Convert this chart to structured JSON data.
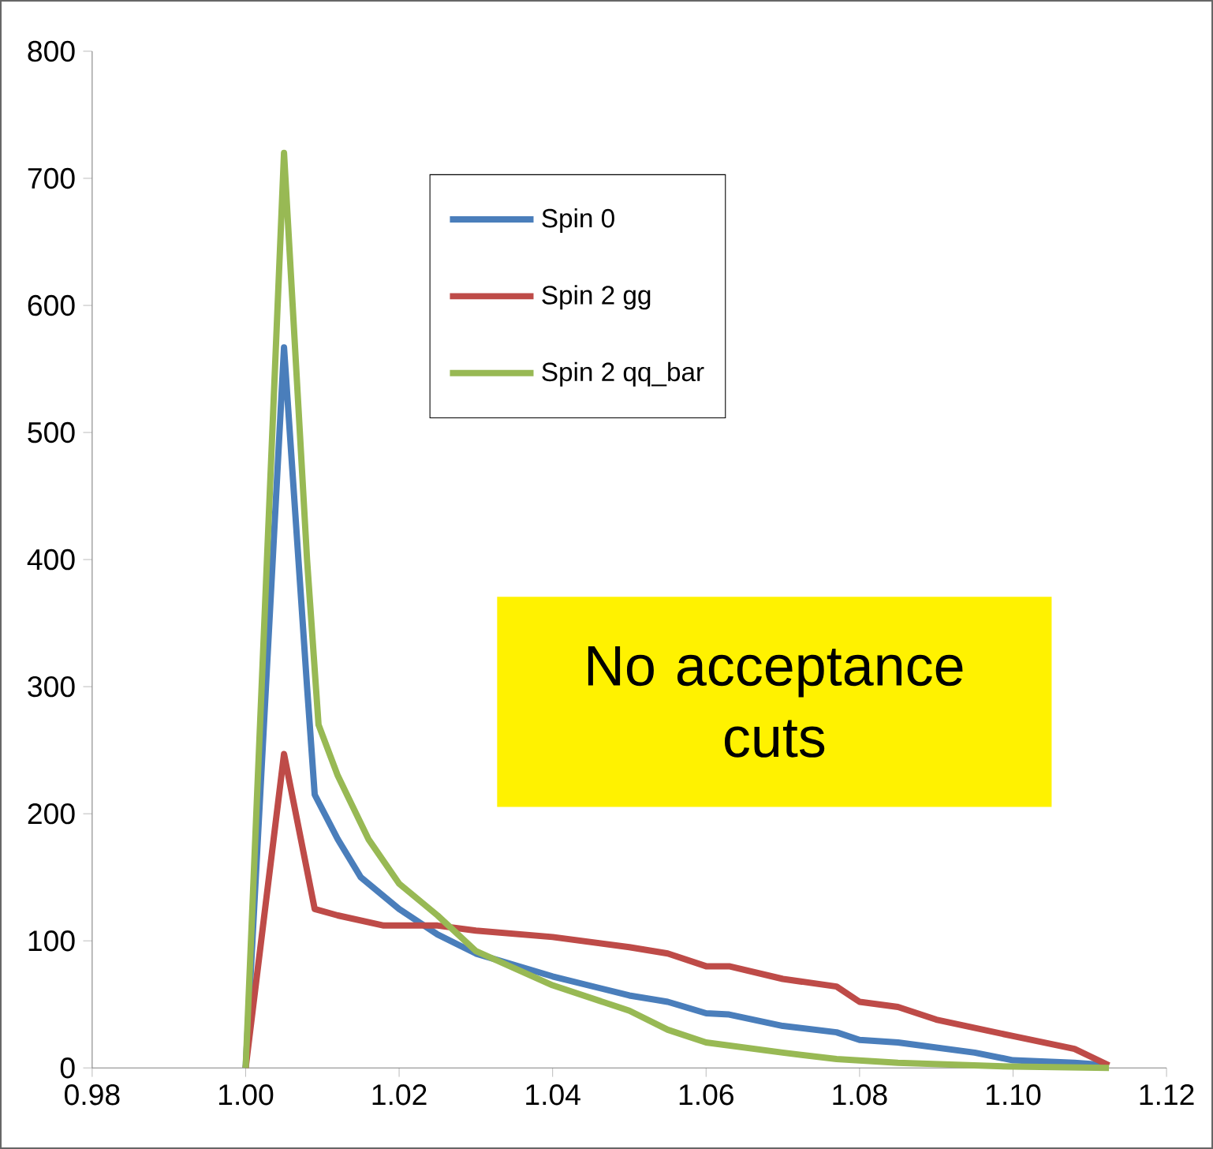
{
  "chart_data": {
    "type": "line",
    "annotations": [
      "No acceptance cuts"
    ],
    "xlim": [
      0.98,
      1.12
    ],
    "ylim": [
      0,
      800
    ],
    "xticks": [
      {
        "value": 0.98,
        "label": "0.98"
      },
      {
        "value": 1.0,
        "label": "1.00"
      },
      {
        "value": 1.02,
        "label": "1.02"
      },
      {
        "value": 1.04,
        "label": "1.04"
      },
      {
        "value": 1.06,
        "label": "1.06"
      },
      {
        "value": 1.08,
        "label": "1.08"
      },
      {
        "value": 1.1,
        "label": "1.10"
      },
      {
        "value": 1.12,
        "label": "1.12"
      }
    ],
    "yticks": [
      0,
      100,
      200,
      300,
      400,
      500,
      600,
      700,
      800
    ],
    "grid": false,
    "legend": "top",
    "marker": "none",
    "line_style": "solid",
    "series": [
      {
        "name": "Spin 0",
        "color": "#4a7ebb",
        "x": [
          1.0,
          1.005,
          1.008,
          1.009,
          1.012,
          1.015,
          1.02,
          1.025,
          1.03,
          1.04,
          1.05,
          1.055,
          1.06,
          1.063,
          1.07,
          1.077,
          1.08,
          1.085,
          1.095,
          1.1,
          1.108,
          1.1125
        ],
        "values": [
          0,
          567,
          300,
          215,
          180,
          150,
          125,
          105,
          90,
          72,
          57,
          52,
          43,
          42,
          33,
          28,
          22,
          20,
          12,
          6,
          4,
          2
        ]
      },
      {
        "name": "Spin 2 gg",
        "color": "#be4b48",
        "x": [
          1.0,
          1.005,
          1.009,
          1.012,
          1.018,
          1.025,
          1.03,
          1.04,
          1.05,
          1.055,
          1.06,
          1.063,
          1.07,
          1.077,
          1.08,
          1.085,
          1.09,
          1.1,
          1.108,
          1.1125
        ],
        "values": [
          0,
          247,
          125,
          120,
          112,
          112,
          108,
          103,
          95,
          90,
          80,
          80,
          70,
          64,
          52,
          48,
          38,
          25,
          15,
          2
        ]
      },
      {
        "name": "Spin 2 qq_bar",
        "color": "#98b954",
        "x": [
          1.0,
          1.005,
          1.008,
          1.0095,
          1.012,
          1.016,
          1.02,
          1.025,
          1.03,
          1.04,
          1.05,
          1.055,
          1.06,
          1.07,
          1.077,
          1.085,
          1.1,
          1.1125
        ],
        "values": [
          0,
          720,
          400,
          270,
          230,
          180,
          145,
          120,
          92,
          65,
          45,
          30,
          20,
          12,
          7,
          4,
          1,
          0
        ]
      }
    ]
  }
}
